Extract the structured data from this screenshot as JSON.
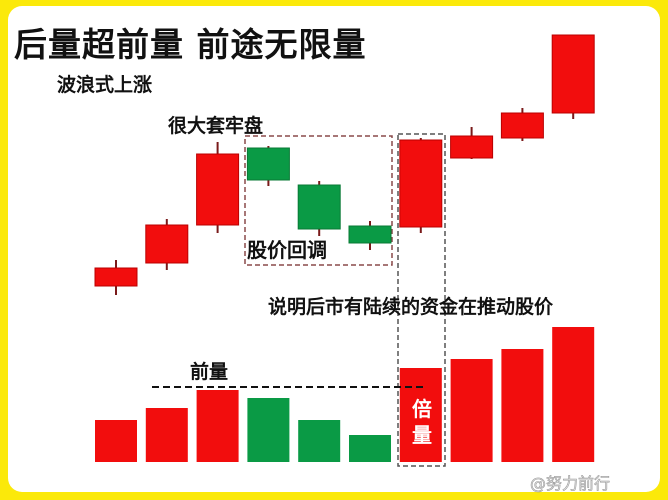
{
  "title": "后量超前量  前途无限量",
  "labels": {
    "wave_rise": "波浪式上涨",
    "heavy_trapped": "很大套牢盘",
    "pullback": "股价回调",
    "note": "说明后市有陆续的资金在推动股价",
    "previous_volume": "前量",
    "double_volume": "倍量"
  },
  "watermark": "@努力前行",
  "colors": {
    "up": "#f20d0d",
    "down": "#0a9a45",
    "border": "#fbe90a"
  },
  "chart_data": {
    "type": "candlestick",
    "candles": [
      {
        "open": 14,
        "close": 32,
        "high": 40,
        "low": 5
      },
      {
        "open": 37,
        "close": 75,
        "high": 81,
        "low": 30
      },
      {
        "open": 75,
        "close": 146,
        "high": 158,
        "low": 67
      },
      {
        "open": 152,
        "close": 120,
        "high": 154,
        "low": 114
      },
      {
        "open": 115,
        "close": 71,
        "high": 119,
        "low": 64
      },
      {
        "open": 74,
        "close": 57,
        "high": 79,
        "low": 50
      },
      {
        "open": 73,
        "close": 160,
        "high": 162,
        "low": 67
      },
      {
        "open": 142,
        "close": 164,
        "high": 173,
        "low": 141
      },
      {
        "open": 162,
        "close": 187,
        "high": 192,
        "low": 159
      },
      {
        "open": 187,
        "close": 265,
        "high": 265,
        "low": 181
      }
    ],
    "volume": [
      42,
      54,
      72,
      64,
      42,
      27,
      94,
      103,
      113,
      135
    ],
    "reference_volume_level": 75
  }
}
